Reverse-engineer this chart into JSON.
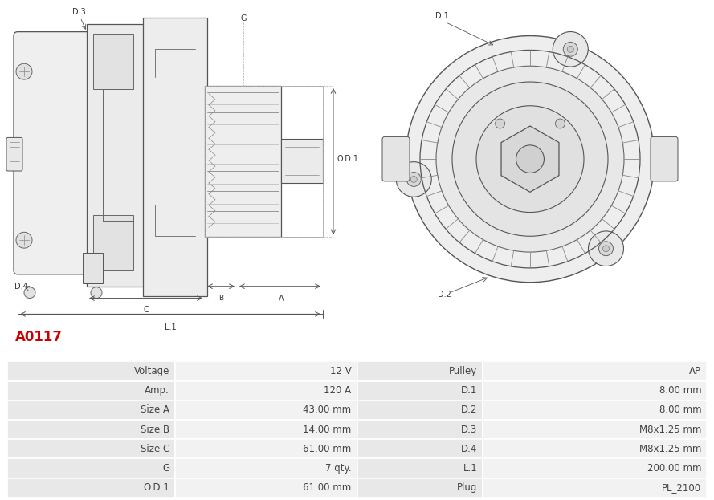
{
  "title": "A0117",
  "title_color": "#cc0000",
  "title_fontsize": 12,
  "table_rows": [
    [
      "Voltage",
      "12 V",
      "Pulley",
      "AP"
    ],
    [
      "Amp.",
      "120 A",
      "D.1",
      "8.00 mm"
    ],
    [
      "Size A",
      "43.00 mm",
      "D.2",
      "8.00 mm"
    ],
    [
      "Size B",
      "14.00 mm",
      "D.3",
      "M8x1.25 mm"
    ],
    [
      "Size C",
      "61.00 mm",
      "D.4",
      "M8x1.25 mm"
    ],
    [
      "G",
      "7 qty.",
      "L.1",
      "200.00 mm"
    ],
    [
      "O.D.1",
      "61.00 mm",
      "Plug",
      "PL_2100"
    ]
  ],
  "left_col_bg": "#e8e8e8",
  "right_col_bg": "#f2f2f2",
  "border_color": "#ffffff",
  "text_color": "#444444",
  "font_size": 8.5,
  "bg_color": "#ffffff"
}
